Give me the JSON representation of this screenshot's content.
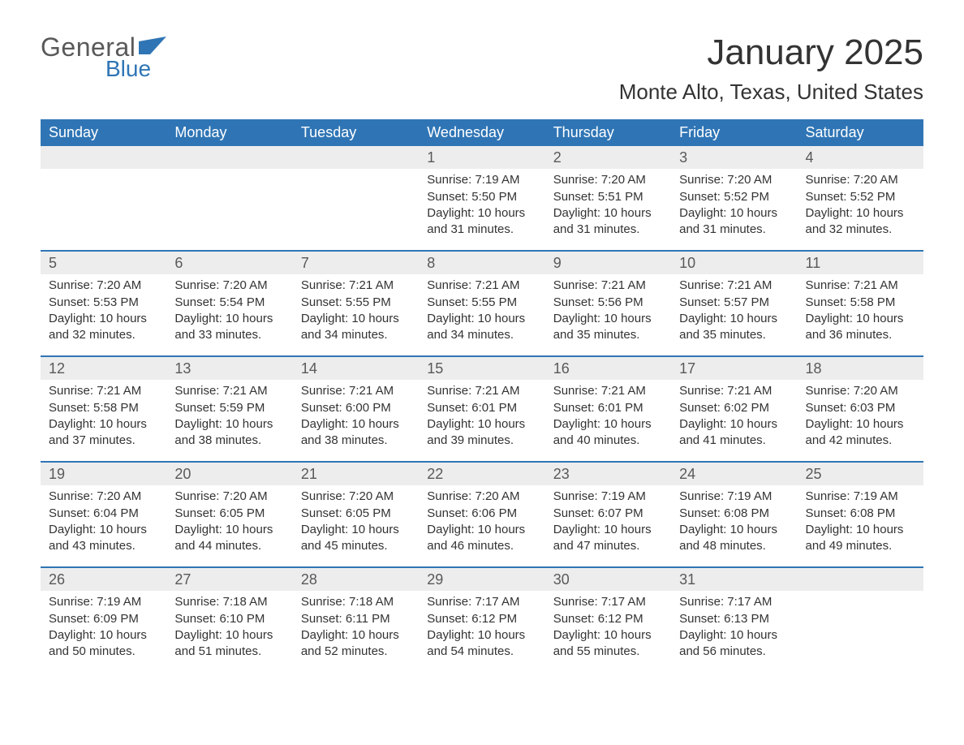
{
  "logo": {
    "general": "General",
    "blue": "Blue",
    "flag_color": "#2f75b5"
  },
  "title": "January 2025",
  "location": "Monte Alto, Texas, United States",
  "colors": {
    "header_bg": "#2f75b5",
    "header_text": "#ffffff",
    "daynum_bg": "#ededed",
    "week_divider": "#2f75b5",
    "body_text": "#333333"
  },
  "typography": {
    "title_fontsize": 44,
    "location_fontsize": 26,
    "dow_fontsize": 18,
    "daynum_fontsize": 18,
    "body_fontsize": 15
  },
  "days_of_week": [
    "Sunday",
    "Monday",
    "Tuesday",
    "Wednesday",
    "Thursday",
    "Friday",
    "Saturday"
  ],
  "weeks": [
    [
      {
        "num": "",
        "sunrise": "",
        "sunset": "",
        "daylight": ""
      },
      {
        "num": "",
        "sunrise": "",
        "sunset": "",
        "daylight": ""
      },
      {
        "num": "",
        "sunrise": "",
        "sunset": "",
        "daylight": ""
      },
      {
        "num": "1",
        "sunrise": "Sunrise: 7:19 AM",
        "sunset": "Sunset: 5:50 PM",
        "daylight": "Daylight: 10 hours and 31 minutes."
      },
      {
        "num": "2",
        "sunrise": "Sunrise: 7:20 AM",
        "sunset": "Sunset: 5:51 PM",
        "daylight": "Daylight: 10 hours and 31 minutes."
      },
      {
        "num": "3",
        "sunrise": "Sunrise: 7:20 AM",
        "sunset": "Sunset: 5:52 PM",
        "daylight": "Daylight: 10 hours and 31 minutes."
      },
      {
        "num": "4",
        "sunrise": "Sunrise: 7:20 AM",
        "sunset": "Sunset: 5:52 PM",
        "daylight": "Daylight: 10 hours and 32 minutes."
      }
    ],
    [
      {
        "num": "5",
        "sunrise": "Sunrise: 7:20 AM",
        "sunset": "Sunset: 5:53 PM",
        "daylight": "Daylight: 10 hours and 32 minutes."
      },
      {
        "num": "6",
        "sunrise": "Sunrise: 7:20 AM",
        "sunset": "Sunset: 5:54 PM",
        "daylight": "Daylight: 10 hours and 33 minutes."
      },
      {
        "num": "7",
        "sunrise": "Sunrise: 7:21 AM",
        "sunset": "Sunset: 5:55 PM",
        "daylight": "Daylight: 10 hours and 34 minutes."
      },
      {
        "num": "8",
        "sunrise": "Sunrise: 7:21 AM",
        "sunset": "Sunset: 5:55 PM",
        "daylight": "Daylight: 10 hours and 34 minutes."
      },
      {
        "num": "9",
        "sunrise": "Sunrise: 7:21 AM",
        "sunset": "Sunset: 5:56 PM",
        "daylight": "Daylight: 10 hours and 35 minutes."
      },
      {
        "num": "10",
        "sunrise": "Sunrise: 7:21 AM",
        "sunset": "Sunset: 5:57 PM",
        "daylight": "Daylight: 10 hours and 35 minutes."
      },
      {
        "num": "11",
        "sunrise": "Sunrise: 7:21 AM",
        "sunset": "Sunset: 5:58 PM",
        "daylight": "Daylight: 10 hours and 36 minutes."
      }
    ],
    [
      {
        "num": "12",
        "sunrise": "Sunrise: 7:21 AM",
        "sunset": "Sunset: 5:58 PM",
        "daylight": "Daylight: 10 hours and 37 minutes."
      },
      {
        "num": "13",
        "sunrise": "Sunrise: 7:21 AM",
        "sunset": "Sunset: 5:59 PM",
        "daylight": "Daylight: 10 hours and 38 minutes."
      },
      {
        "num": "14",
        "sunrise": "Sunrise: 7:21 AM",
        "sunset": "Sunset: 6:00 PM",
        "daylight": "Daylight: 10 hours and 38 minutes."
      },
      {
        "num": "15",
        "sunrise": "Sunrise: 7:21 AM",
        "sunset": "Sunset: 6:01 PM",
        "daylight": "Daylight: 10 hours and 39 minutes."
      },
      {
        "num": "16",
        "sunrise": "Sunrise: 7:21 AM",
        "sunset": "Sunset: 6:01 PM",
        "daylight": "Daylight: 10 hours and 40 minutes."
      },
      {
        "num": "17",
        "sunrise": "Sunrise: 7:21 AM",
        "sunset": "Sunset: 6:02 PM",
        "daylight": "Daylight: 10 hours and 41 minutes."
      },
      {
        "num": "18",
        "sunrise": "Sunrise: 7:20 AM",
        "sunset": "Sunset: 6:03 PM",
        "daylight": "Daylight: 10 hours and 42 minutes."
      }
    ],
    [
      {
        "num": "19",
        "sunrise": "Sunrise: 7:20 AM",
        "sunset": "Sunset: 6:04 PM",
        "daylight": "Daylight: 10 hours and 43 minutes."
      },
      {
        "num": "20",
        "sunrise": "Sunrise: 7:20 AM",
        "sunset": "Sunset: 6:05 PM",
        "daylight": "Daylight: 10 hours and 44 minutes."
      },
      {
        "num": "21",
        "sunrise": "Sunrise: 7:20 AM",
        "sunset": "Sunset: 6:05 PM",
        "daylight": "Daylight: 10 hours and 45 minutes."
      },
      {
        "num": "22",
        "sunrise": "Sunrise: 7:20 AM",
        "sunset": "Sunset: 6:06 PM",
        "daylight": "Daylight: 10 hours and 46 minutes."
      },
      {
        "num": "23",
        "sunrise": "Sunrise: 7:19 AM",
        "sunset": "Sunset: 6:07 PM",
        "daylight": "Daylight: 10 hours and 47 minutes."
      },
      {
        "num": "24",
        "sunrise": "Sunrise: 7:19 AM",
        "sunset": "Sunset: 6:08 PM",
        "daylight": "Daylight: 10 hours and 48 minutes."
      },
      {
        "num": "25",
        "sunrise": "Sunrise: 7:19 AM",
        "sunset": "Sunset: 6:08 PM",
        "daylight": "Daylight: 10 hours and 49 minutes."
      }
    ],
    [
      {
        "num": "26",
        "sunrise": "Sunrise: 7:19 AM",
        "sunset": "Sunset: 6:09 PM",
        "daylight": "Daylight: 10 hours and 50 minutes."
      },
      {
        "num": "27",
        "sunrise": "Sunrise: 7:18 AM",
        "sunset": "Sunset: 6:10 PM",
        "daylight": "Daylight: 10 hours and 51 minutes."
      },
      {
        "num": "28",
        "sunrise": "Sunrise: 7:18 AM",
        "sunset": "Sunset: 6:11 PM",
        "daylight": "Daylight: 10 hours and 52 minutes."
      },
      {
        "num": "29",
        "sunrise": "Sunrise: 7:17 AM",
        "sunset": "Sunset: 6:12 PM",
        "daylight": "Daylight: 10 hours and 54 minutes."
      },
      {
        "num": "30",
        "sunrise": "Sunrise: 7:17 AM",
        "sunset": "Sunset: 6:12 PM",
        "daylight": "Daylight: 10 hours and 55 minutes."
      },
      {
        "num": "31",
        "sunrise": "Sunrise: 7:17 AM",
        "sunset": "Sunset: 6:13 PM",
        "daylight": "Daylight: 10 hours and 56 minutes."
      },
      {
        "num": "",
        "sunrise": "",
        "sunset": "",
        "daylight": ""
      }
    ]
  ]
}
